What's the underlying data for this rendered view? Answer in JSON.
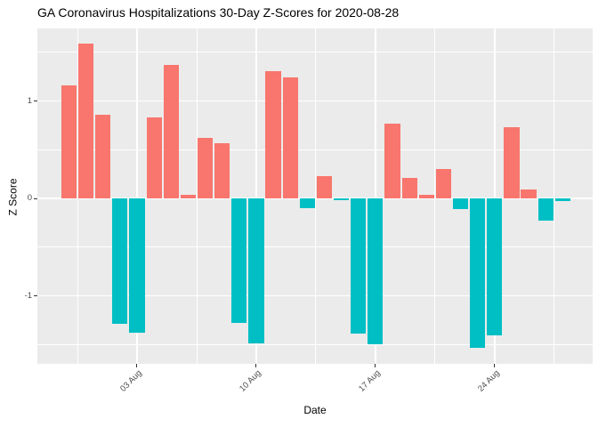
{
  "title": "GA Coronavirus Hospitalizations 30-Day Z-Scores for 2020-08-28",
  "axes": {
    "x_label": "Date",
    "y_label": "Z Score",
    "x_tick_labels": [
      "03 Aug",
      "10 Aug",
      "17 Aug",
      "24 Aug"
    ],
    "y_tick_labels": [
      "1",
      "0",
      "-1"
    ]
  },
  "colors": {
    "positive_bar": "#F8766D",
    "negative_bar": "#00BFC4",
    "panel_background": "#EBEBEB",
    "gridline": "#FFFFFF",
    "tick_label_text": "#4D4D4D",
    "tick_mark": "#333333",
    "title_text": "#000000"
  },
  "chart_data": {
    "type": "bar",
    "title": "GA Coronavirus Hospitalizations 30-Day Z-Scores for 2020-08-28",
    "xlabel": "Date",
    "ylabel": "Z Score",
    "x": [
      "2020-07-30",
      "2020-07-31",
      "2020-08-01",
      "2020-08-02",
      "2020-08-03",
      "2020-08-04",
      "2020-08-05",
      "2020-08-06",
      "2020-08-07",
      "2020-08-08",
      "2020-08-09",
      "2020-08-10",
      "2020-08-11",
      "2020-08-12",
      "2020-08-13",
      "2020-08-14",
      "2020-08-15",
      "2020-08-16",
      "2020-08-17",
      "2020-08-18",
      "2020-08-19",
      "2020-08-20",
      "2020-08-21",
      "2020-08-22",
      "2020-08-23",
      "2020-08-24",
      "2020-08-25",
      "2020-08-26",
      "2020-08-27",
      "2020-08-28"
    ],
    "values": [
      1.16,
      1.59,
      0.86,
      -1.29,
      -1.38,
      0.83,
      1.37,
      0.04,
      0.62,
      0.57,
      -1.28,
      -1.49,
      1.31,
      1.24,
      -0.1,
      0.23,
      -0.02,
      -1.39,
      -1.5,
      0.77,
      0.21,
      0.04,
      0.3,
      -0.11,
      -1.53,
      -1.41,
      0.73,
      0.09,
      -0.23,
      -0.03
    ],
    "bar_color_rule": "positive #F8766D, negative #00BFC4",
    "x_tick_labels": [
      "03 Aug",
      "10 Aug",
      "17 Aug",
      "24 Aug"
    ],
    "x_tick_indices": [
      4,
      11,
      18,
      25
    ],
    "y_major_ticks": [
      1,
      0,
      -1
    ],
    "y_minor_ticks": [
      1.5,
      0.5,
      -0.5,
      -1.5
    ],
    "ylim": [
      -1.69,
      1.75
    ],
    "grid": "major+minor white on grey panel",
    "legend": "none"
  }
}
